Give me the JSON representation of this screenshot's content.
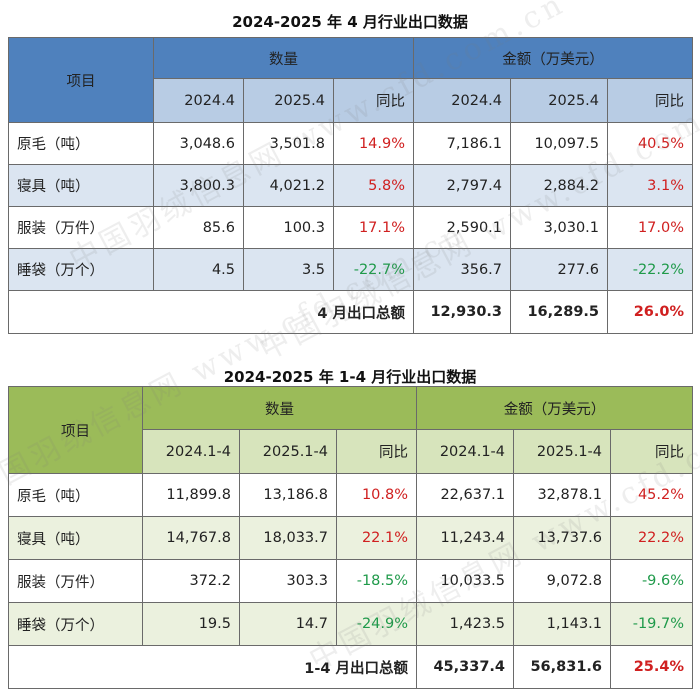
{
  "t1": {
    "title": "2024-2025 年 4 月行业出口数据",
    "head": {
      "item": "项目",
      "qty": "数量",
      "amt": "金额（万美元）",
      "sub": [
        "2024.4",
        "2025.4",
        "同比",
        "2024.4",
        "2025.4",
        "同比"
      ]
    },
    "rows": [
      {
        "label": "原毛（吨）",
        "cells": [
          "3,048.6",
          "3,501.8",
          "14.9%",
          "7,186.1",
          "10,097.5",
          "40.5%"
        ]
      },
      {
        "label": "寝具（吨）",
        "cells": [
          "3,800.3",
          "4,021.2",
          "5.8%",
          "2,797.4",
          "2,884.2",
          "3.1%"
        ]
      },
      {
        "label": "服装（万件）",
        "cells": [
          "85.6",
          "100.3",
          "17.1%",
          "2,590.1",
          "3,030.1",
          "17.0%"
        ]
      },
      {
        "label": "睡袋（万个）",
        "cells": [
          "4.5",
          "3.5",
          "-22.7%",
          "356.7",
          "277.6",
          "-22.2%"
        ]
      }
    ],
    "total": {
      "label": "4 月出口总额",
      "v1": "12,930.3",
      "v2": "16,289.5",
      "pct": "26.0%"
    }
  },
  "t2": {
    "title": "2024-2025 年 1-4 月行业出口数据",
    "head": {
      "item": "项目",
      "qty": "数量",
      "amt": "金额（万美元）",
      "sub": [
        "2024.1-4",
        "2025.1-4",
        "同比",
        "2024.1-4",
        "2025.1-4",
        "同比"
      ]
    },
    "rows": [
      {
        "label": "原毛（吨）",
        "cells": [
          "11,899.8",
          "13,186.8",
          "10.8%",
          "22,637.1",
          "32,878.1",
          "45.2%"
        ]
      },
      {
        "label": "寝具（吨）",
        "cells": [
          "14,767.8",
          "18,033.7",
          "22.1%",
          "11,243.4",
          "13,737.6",
          "22.2%"
        ]
      },
      {
        "label": "服装（万件）",
        "cells": [
          "372.2",
          "303.3",
          "-18.5%",
          "10,033.5",
          "9,072.8",
          "-9.6%"
        ]
      },
      {
        "label": "睡袋（万个）",
        "cells": [
          "19.5",
          "14.7",
          "-24.9%",
          "1,423.5",
          "1,143.1",
          "-19.7%"
        ]
      }
    ],
    "total": {
      "label": "1-4 月出口总额",
      "v1": "45,337.4",
      "v2": "56,831.6",
      "pct": "25.4%"
    }
  },
  "watermark": "中国羽绒信息网 www.cfd.com.cn",
  "colors": {
    "t1_header": "#4f81bd",
    "t1_subheader": "#b8cce4",
    "t1_band": "#dbe5f1",
    "t2_header": "#9bbb59",
    "t2_subheader": "#d7e4bc",
    "t2_band": "#ebf1de",
    "positive": "#d02020",
    "negative": "#1f9a4a"
  }
}
